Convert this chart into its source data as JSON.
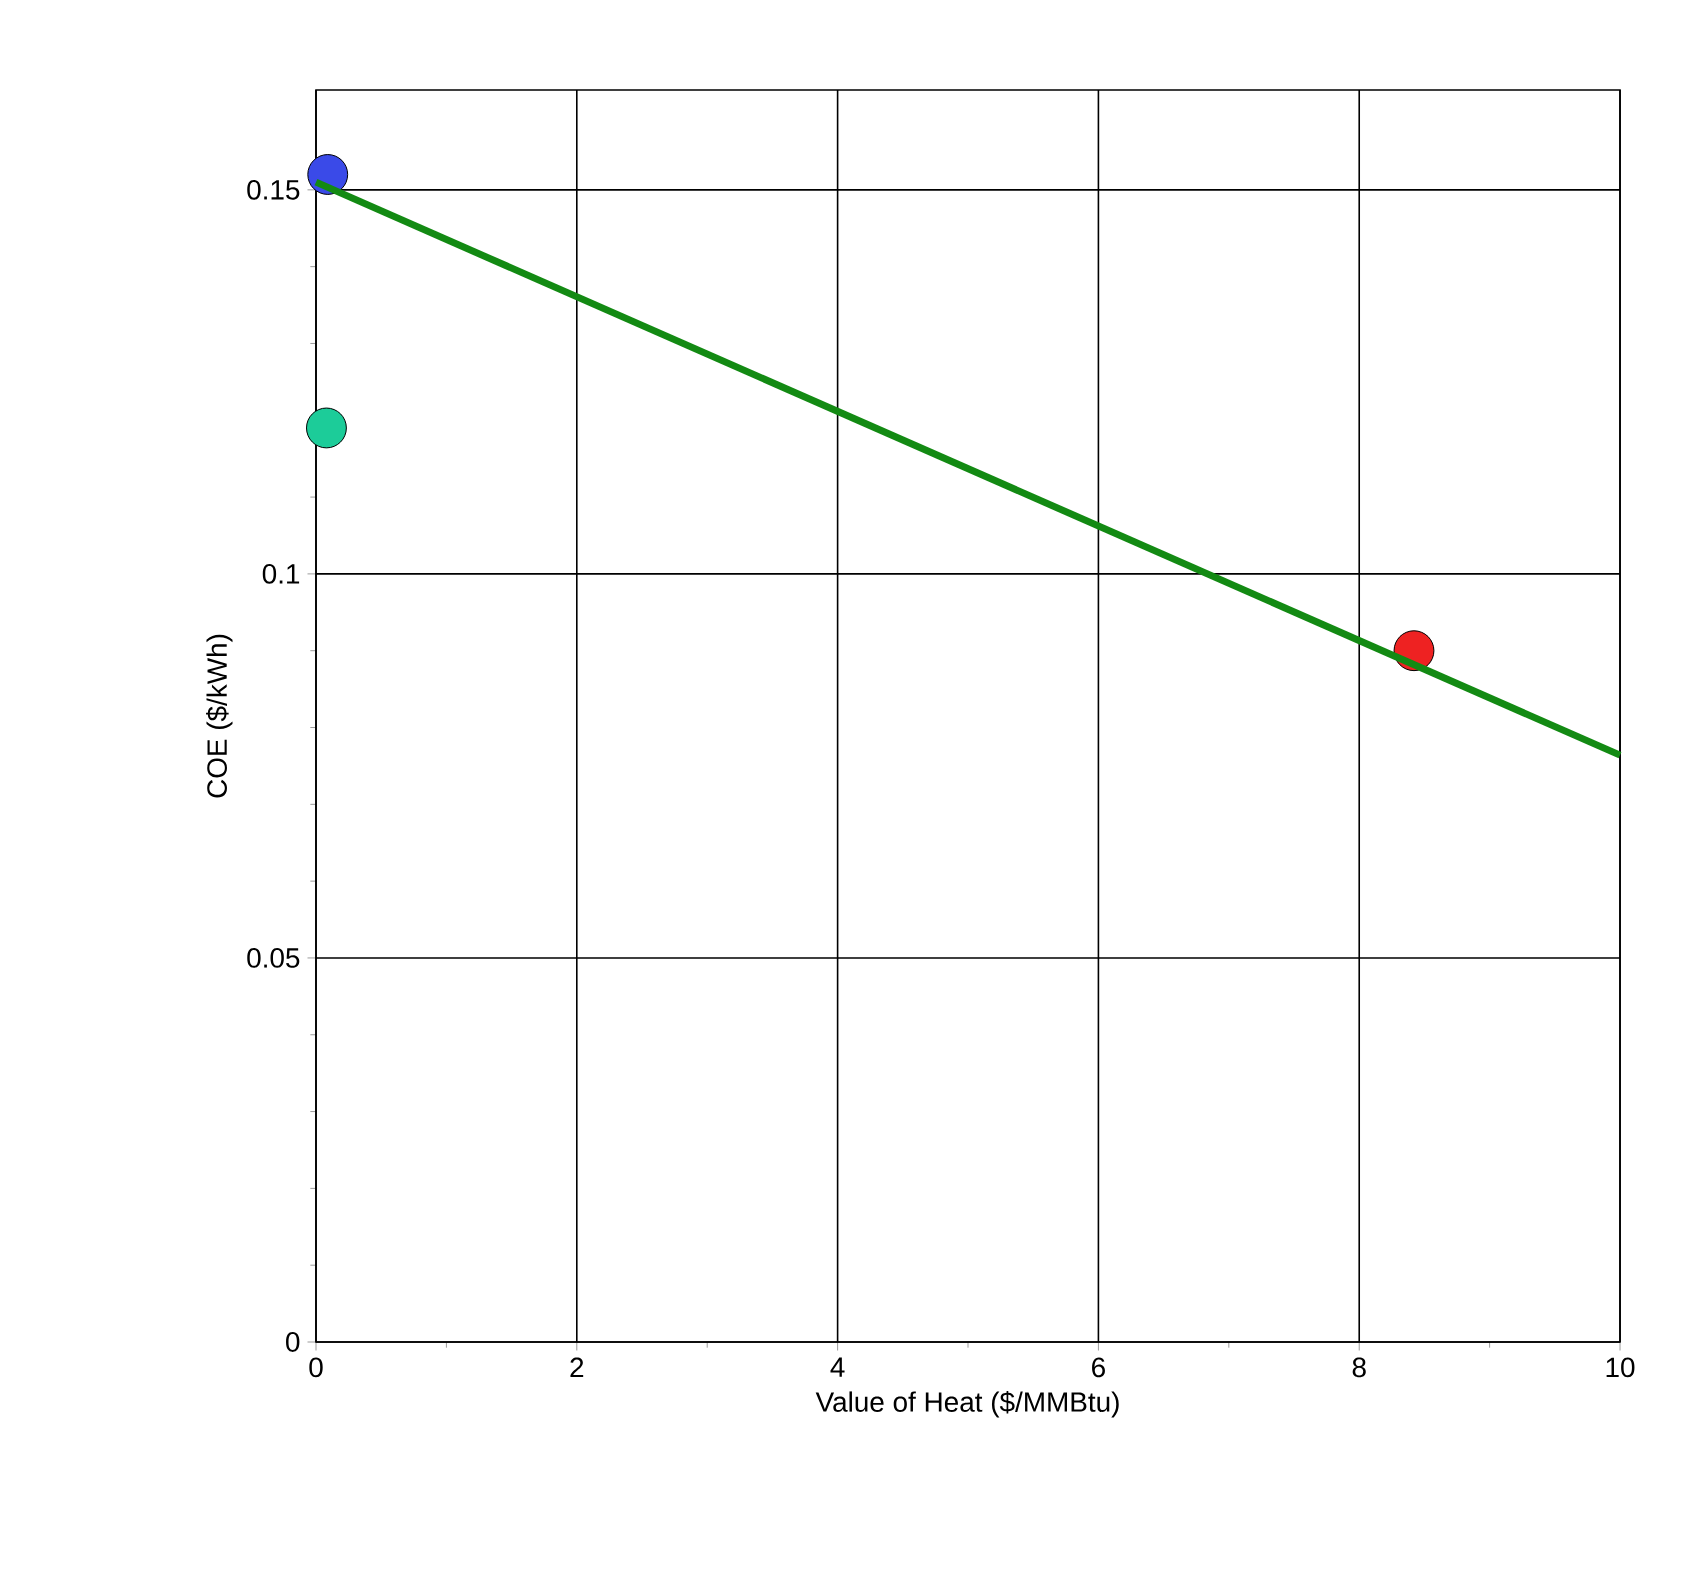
{
  "chart_data": {
    "type": "scatter",
    "xlabel": "Value of Heat ($/MMBtu)",
    "ylabel": "COE ($/kWh)",
    "xlim": [
      0,
      10
    ],
    "ylim": [
      0,
      0.163
    ],
    "xticks": [
      0,
      2,
      4,
      6,
      8,
      10
    ],
    "yticks": [
      0,
      0.05,
      0.1,
      0.15
    ],
    "grid": true,
    "marker": "circle",
    "series": [
      {
        "color": "#3a4ae8",
        "x": [
          0.09
        ],
        "values": [
          0.152
        ]
      },
      {
        "color": "#1ccc99",
        "x": [
          0.08
        ],
        "values": [
          0.119
        ]
      },
      {
        "color": "#ee2222",
        "x": [
          8.42
        ],
        "values": [
          0.09
        ]
      },
      {
        "type": "line",
        "color": "#138a13",
        "x": [
          0,
          10
        ],
        "values": [
          0.151,
          0.0764
        ],
        "marker": "none"
      }
    ]
  }
}
